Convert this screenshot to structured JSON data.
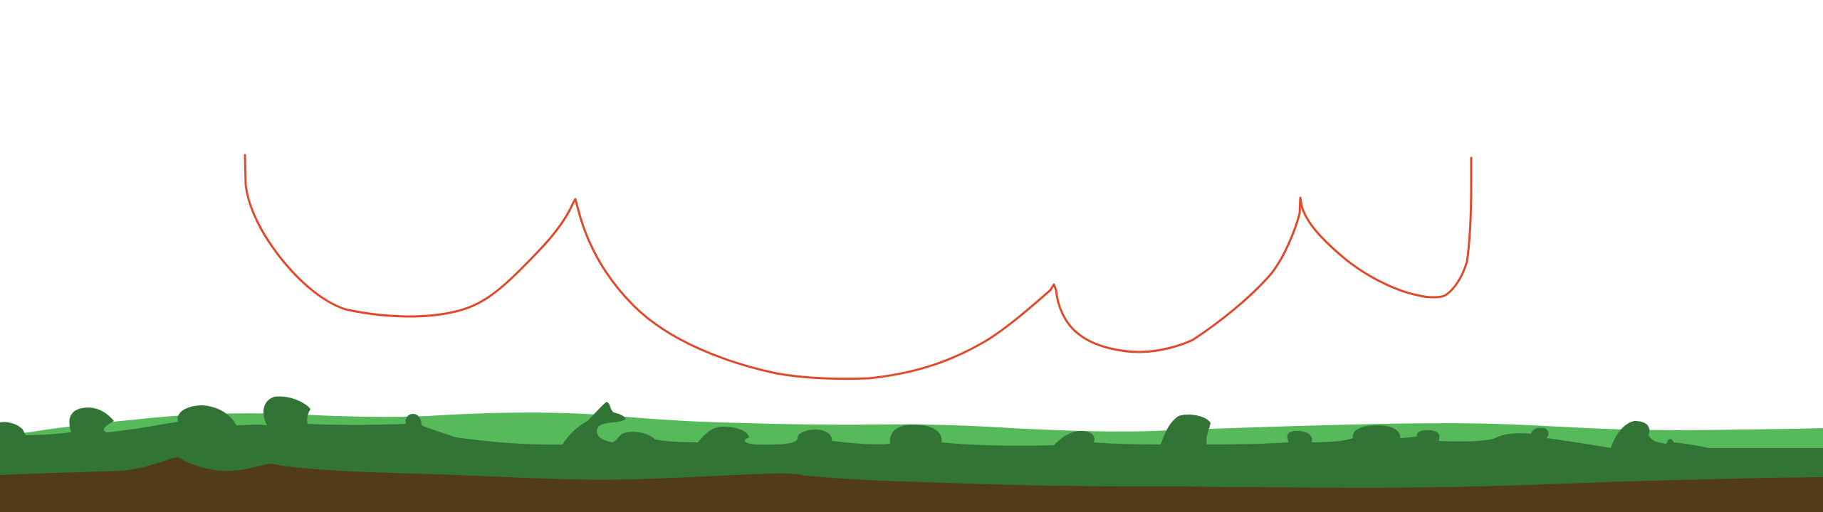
{
  "scene": {
    "colors": {
      "background": "#ffffff",
      "player_line": "#e04a2a",
      "grass_light": "#56b95a",
      "grass_dark": "#327436",
      "dirt": "#523a1d"
    }
  }
}
